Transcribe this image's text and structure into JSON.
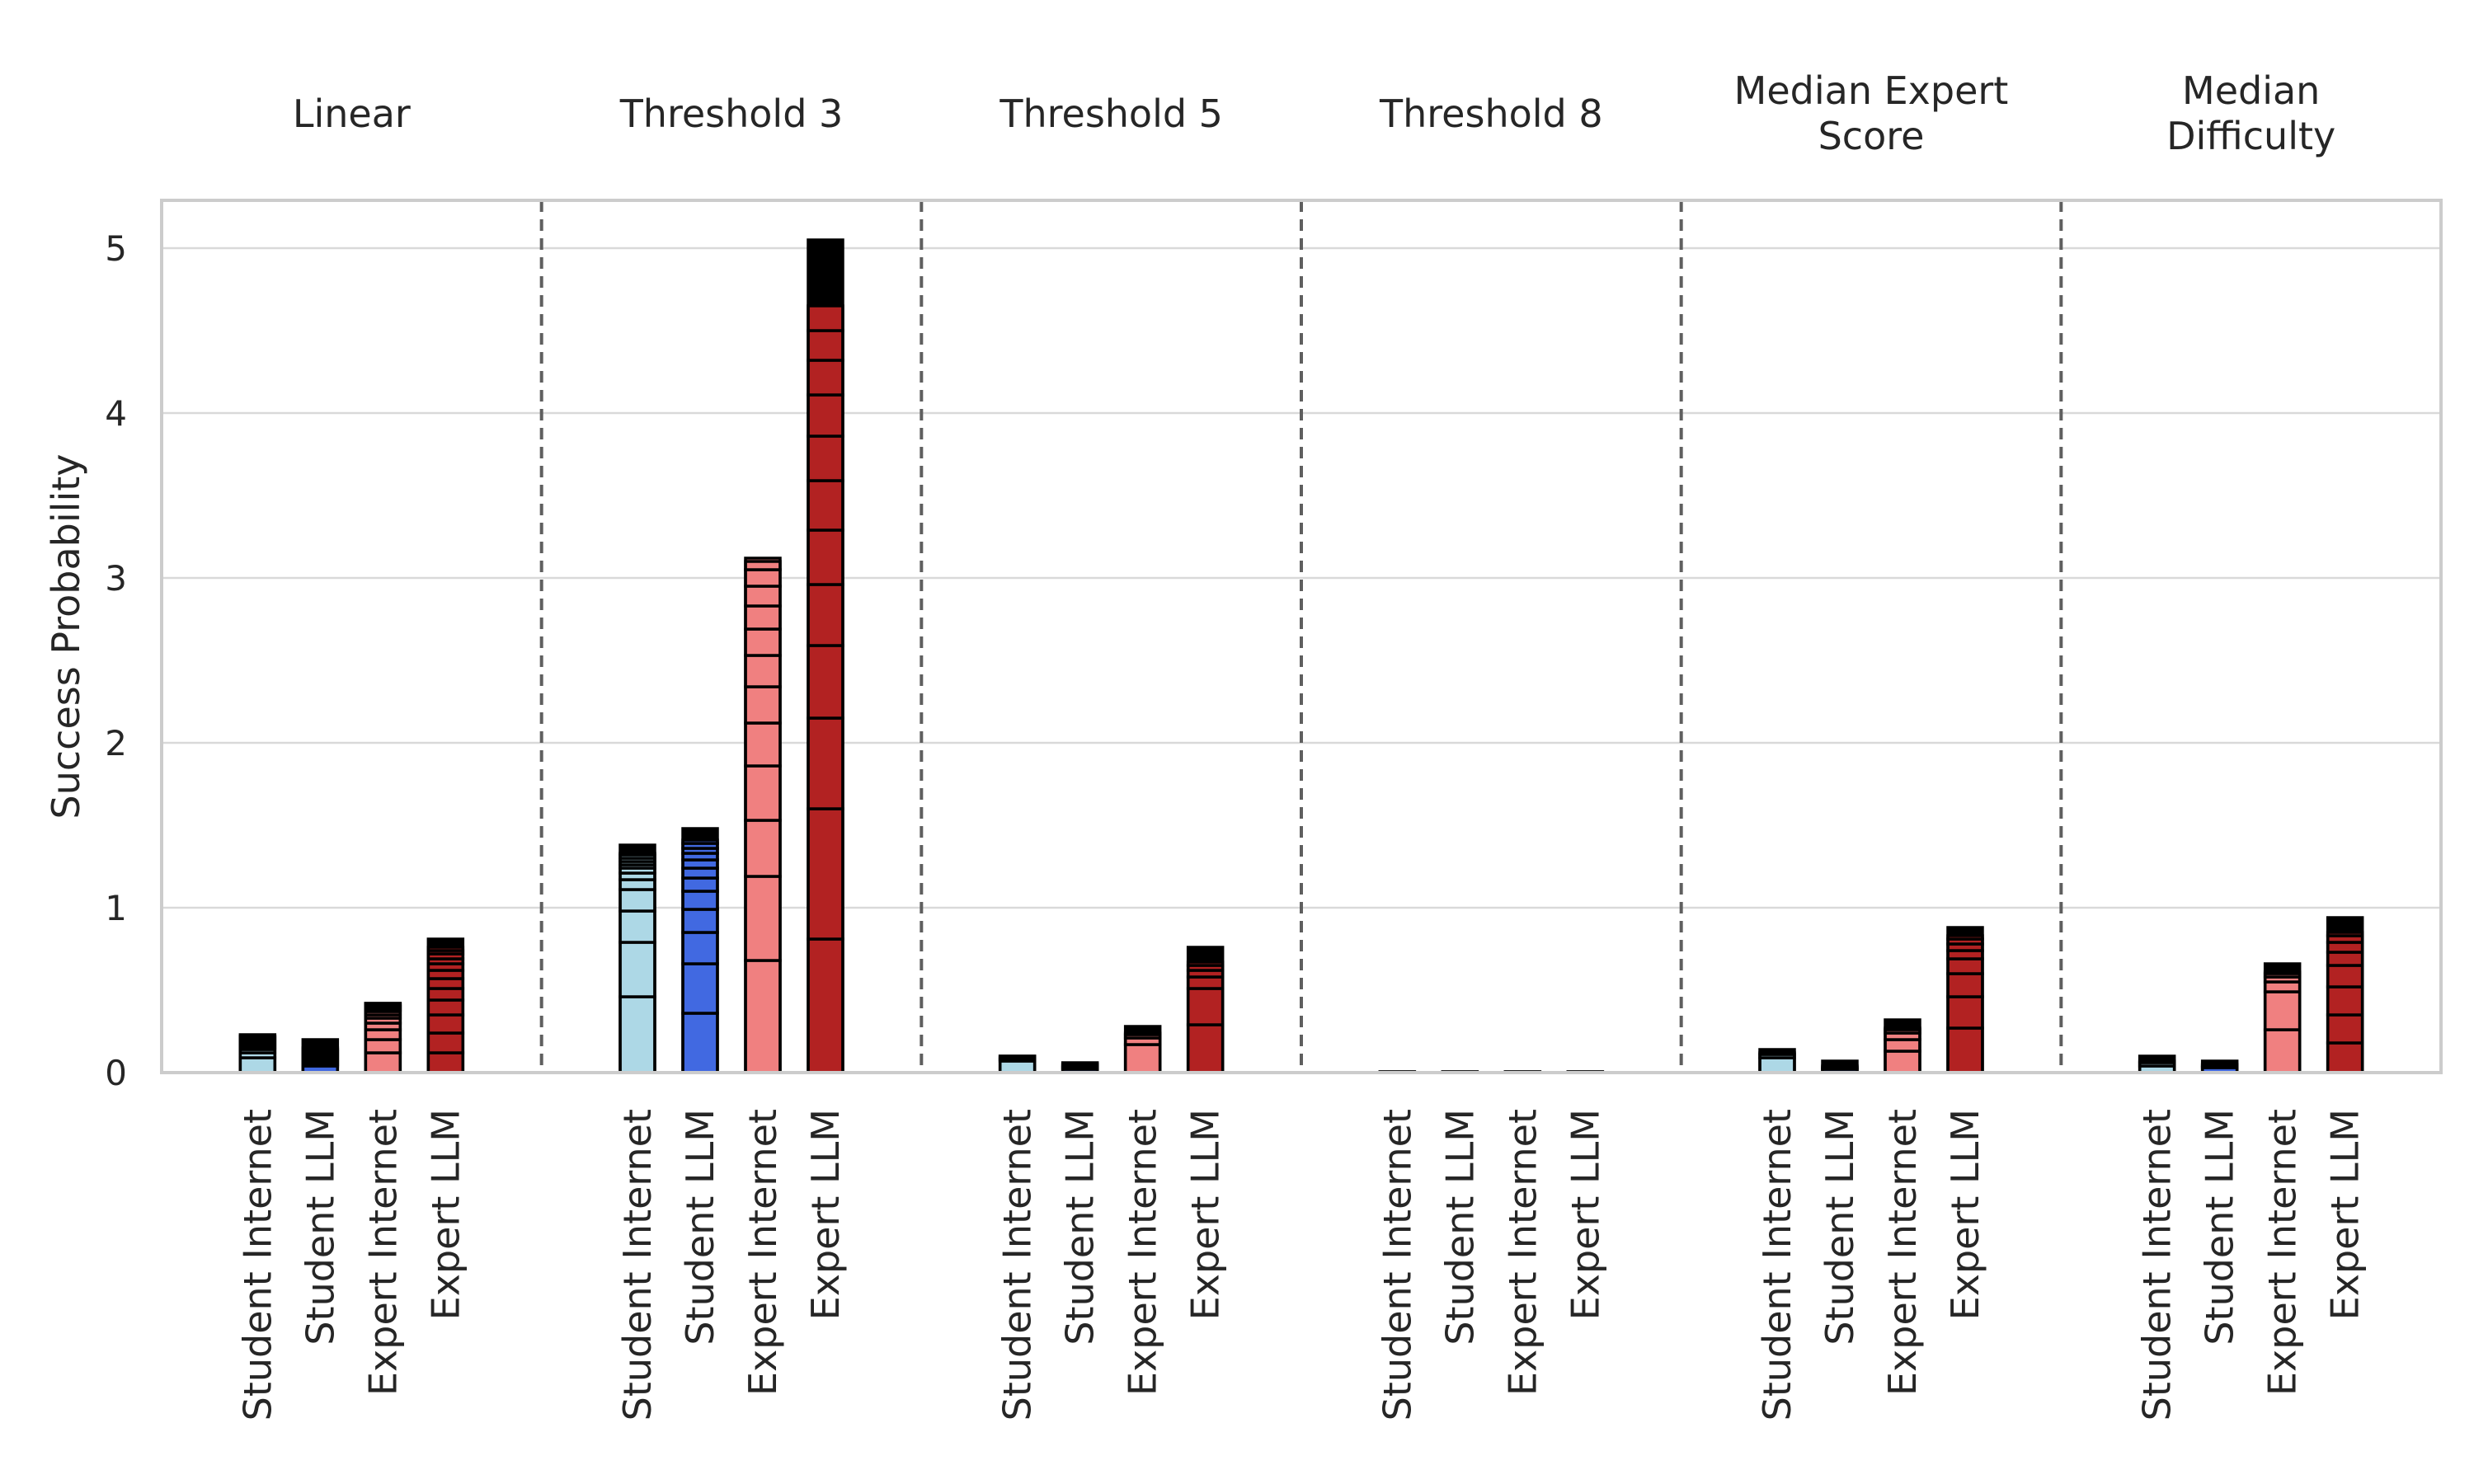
{
  "chart_data": {
    "type": "bar",
    "stacked": true,
    "ylabel": "Success Probability",
    "ylim": [
      0,
      5.3
    ],
    "yticks": [
      0,
      1,
      2,
      3,
      4,
      5
    ],
    "grid": true,
    "categories": [
      "Student Internet",
      "Student LLM",
      "Expert Internet",
      "Expert LLM"
    ],
    "colors": {
      "Student Internet": "#add8e6",
      "Student LLM": "#4169e1",
      "Expert Internet": "#f08080",
      "Expert LLM": "#b22222",
      "segment_edge": "#000000"
    },
    "panels": [
      {
        "title": "Linear",
        "totals": [
          0.22,
          0.2,
          0.42,
          0.81
        ],
        "segments": [
          [
            0.09,
            0.03,
            0.02,
            0.01,
            0.01,
            0.01,
            0.01,
            0.01,
            0.01,
            0.01,
            0.01,
            0.01
          ],
          [
            0.04,
            0.01,
            0.01,
            0.01,
            0.01,
            0.01,
            0.01,
            0.01,
            0.01,
            0.01,
            0.01,
            0.01
          ],
          [
            0.12,
            0.08,
            0.06,
            0.04,
            0.03,
            0.02,
            0.02,
            0.01,
            0.01,
            0.01,
            0.01,
            0.01
          ],
          [
            0.12,
            0.12,
            0.11,
            0.09,
            0.07,
            0.06,
            0.05,
            0.04,
            0.03,
            0.03,
            0.02,
            0.02
          ]
        ]
      },
      {
        "title": "Threshold 3",
        "totals": [
          1.38,
          1.48,
          3.1,
          5.05
        ],
        "segments": [
          [
            0.46,
            0.33,
            0.19,
            0.13,
            0.06,
            0.04,
            0.03,
            0.02,
            0.02,
            0.02,
            0.02,
            0.01
          ],
          [
            0.36,
            0.3,
            0.19,
            0.14,
            0.11,
            0.08,
            0.06,
            0.05,
            0.04,
            0.03,
            0.03,
            0.02
          ],
          [
            0.68,
            0.51,
            0.34,
            0.33,
            0.26,
            0.22,
            0.19,
            0.16,
            0.14,
            0.12,
            0.1,
            0.07
          ],
          [
            0.81,
            0.79,
            0.55,
            0.44,
            0.37,
            0.33,
            0.3,
            0.27,
            0.25,
            0.21,
            0.18,
            0.15
          ]
        ]
      },
      {
        "title": "Threshold 5",
        "totals": [
          0.1,
          0.06,
          0.28,
          0.76
        ],
        "segments": [
          [
            0.07,
            0.01,
            0.01,
            0.01
          ],
          [
            0.02,
            0.01,
            0.01,
            0.01
          ],
          [
            0.17,
            0.04,
            0.02,
            0.01
          ],
          [
            0.29,
            0.22,
            0.07,
            0.04,
            0.03,
            0.02
          ]
        ]
      },
      {
        "title": "Threshold 8",
        "totals": [
          0.005,
          0.005,
          0.005,
          0.005
        ],
        "segments": [
          [
            0.005
          ],
          [
            0.005
          ],
          [
            0.005
          ],
          [
            0.005
          ]
        ]
      },
      {
        "title": "Median Expert Score",
        "totals": [
          0.14,
          0.07,
          0.32,
          0.88
        ],
        "segments": [
          [
            0.09,
            0.02,
            0.01
          ],
          [
            0.02,
            0.01,
            0.01
          ],
          [
            0.13,
            0.07,
            0.04,
            0.02,
            0.01
          ],
          [
            0.27,
            0.19,
            0.14,
            0.09,
            0.05,
            0.04,
            0.03,
            0.02
          ]
        ]
      },
      {
        "title": "Median Difficulty",
        "totals": [
          0.1,
          0.07,
          0.66,
          0.94
        ],
        "segments": [
          [
            0.04,
            0.02,
            0.01
          ],
          [
            0.03,
            0.01,
            0.01
          ],
          [
            0.26,
            0.23,
            0.06,
            0.03,
            0.02,
            0.01
          ],
          [
            0.18,
            0.17,
            0.17,
            0.13,
            0.08,
            0.06,
            0.04,
            0.02
          ]
        ]
      }
    ]
  }
}
